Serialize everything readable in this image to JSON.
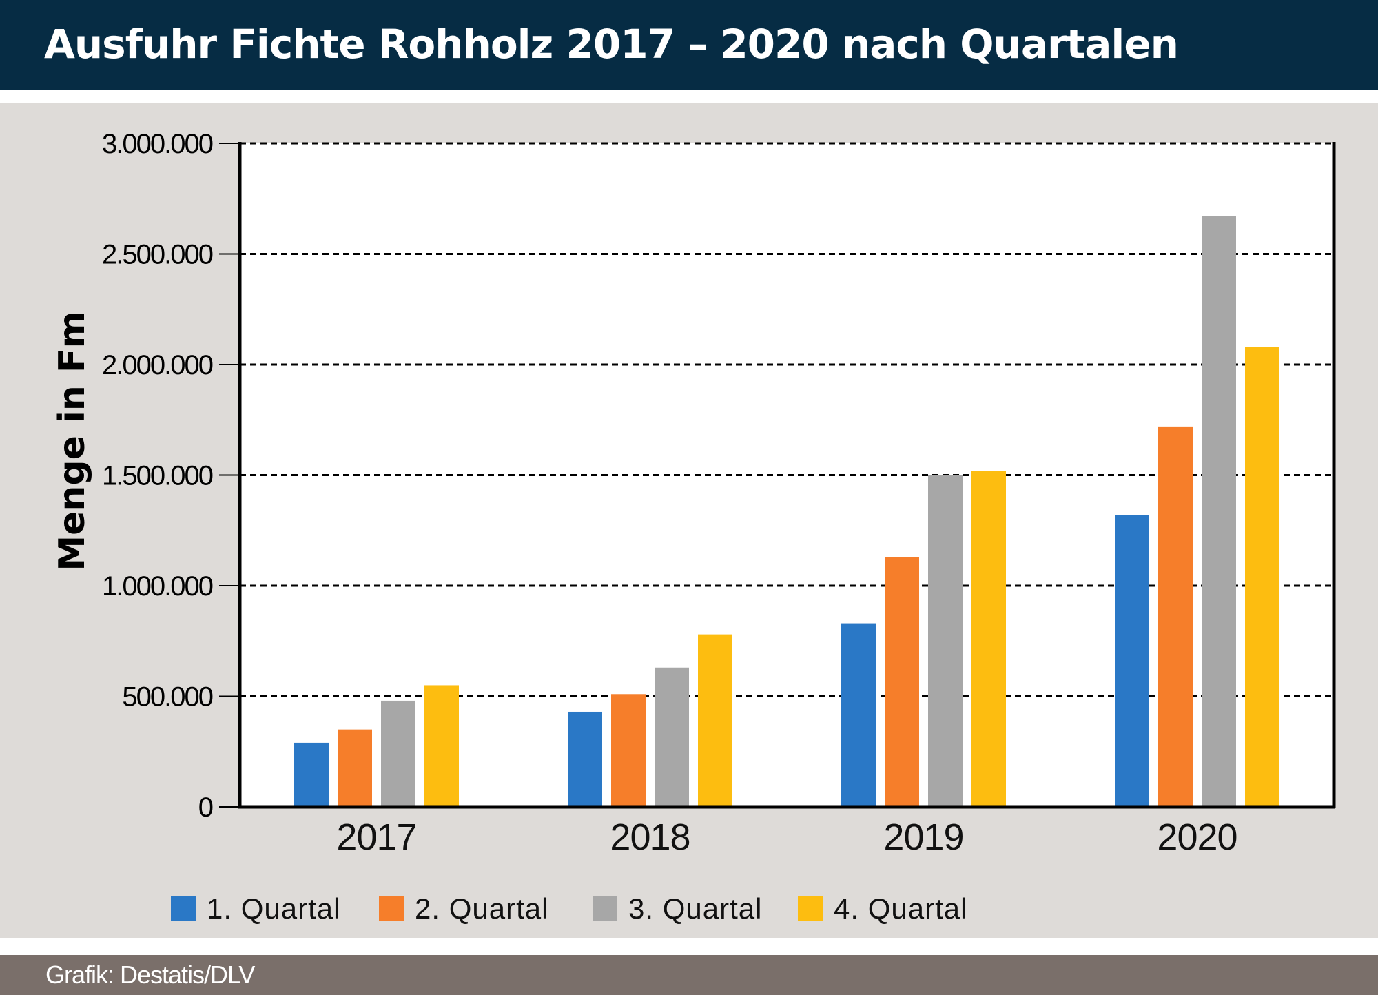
{
  "header": {
    "title": "Ausfuhr Fichte Rohholz 2017 – 2020 nach Quartalen"
  },
  "footer": {
    "source": "Grafik: Destatis/DLV"
  },
  "colors": {
    "header_bg": "#062c44",
    "panel_bg": "#dedbd8",
    "footer_bg": "#7a6f6a",
    "q1": "#2a78c6",
    "q2": "#f67e2a",
    "q3": "#a7a7a7",
    "q4": "#fdbd10"
  },
  "chart_data": {
    "type": "bar",
    "title": "Ausfuhr Fichte Rohholz 2017 – 2020 nach Quartalen",
    "xlabel": "",
    "ylabel": "Menge in Fm",
    "ylim": [
      0,
      3000000
    ],
    "yticks": [
      0,
      500000,
      1000000,
      1500000,
      2000000,
      2500000,
      3000000
    ],
    "ytick_labels": [
      "0",
      "500.000",
      "1.000.000",
      "1.500.000",
      "2.000.000",
      "2.500.000",
      "3.000.000"
    ],
    "categories": [
      "2017",
      "2018",
      "2019",
      "2020"
    ],
    "series": [
      {
        "name": "1. Quartal",
        "color": "#2a78c6",
        "values": [
          290000,
          430000,
          830000,
          1320000
        ]
      },
      {
        "name": "2. Quartal",
        "color": "#f67e2a",
        "values": [
          350000,
          510000,
          1130000,
          1720000
        ]
      },
      {
        "name": "3. Quartal",
        "color": "#a7a7a7",
        "values": [
          480000,
          630000,
          1500000,
          2670000
        ]
      },
      {
        "name": "4. Quartal",
        "color": "#fdbd10",
        "values": [
          550000,
          780000,
          1520000,
          2080000
        ]
      }
    ],
    "grid": true,
    "grid_style": "dashed",
    "legend_position": "bottom"
  }
}
